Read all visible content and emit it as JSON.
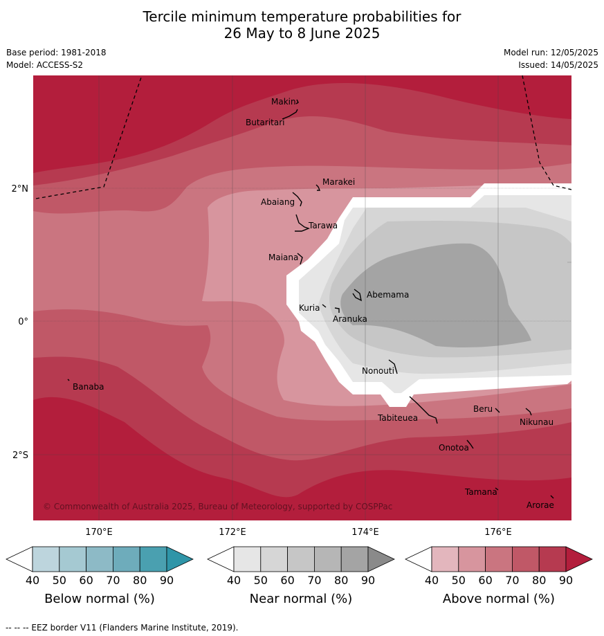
{
  "title": {
    "line1": "Tercile minimum temperature probabilities for",
    "line2": "26 May to 8 June 2025"
  },
  "meta": {
    "base_period": "Base period: 1981-2018",
    "model": "Model: ACCESS-S2",
    "model_run": "Model run: 12/05/2025",
    "issued": "Issued: 14/05/2025"
  },
  "axes": {
    "lon_ticks": [
      "170°E",
      "172°E",
      "174°E",
      "176°E"
    ],
    "lat_ticks": [
      "2°N",
      "0°",
      "2°S"
    ]
  },
  "places": [
    "Makin",
    "Butaritari",
    "Marakei",
    "Abaiang",
    "Tarawa",
    "Maiana",
    "Abemama",
    "Kuria",
    "Aranuka",
    "Nonouti",
    "Banaba",
    "Tabiteuea",
    "Beru",
    "Nikunau",
    "Onotoa",
    "Tamana",
    "Arorae"
  ],
  "copyright": "© Commonwealth of Australia 2025, Bureau of Meteorology, supported by COSPPac",
  "colorbars": [
    {
      "label": "Below normal (%)",
      "colors": [
        "#bdd5dd",
        "#a5c9d2",
        "#8dbac6",
        "#6eacbb",
        "#4aa0b0",
        "#2f95a8"
      ]
    },
    {
      "label": "Near normal (%)",
      "colors": [
        "#e6e6e6",
        "#d6d6d6",
        "#c6c6c6",
        "#b6b6b6",
        "#a4a4a4",
        "#8a8a8a"
      ]
    },
    {
      "label": "Above normal (%)",
      "colors": [
        "#e3b6bd",
        "#d7959e",
        "#ca7580",
        "#c05867",
        "#b63a50",
        "#b31e3c"
      ]
    }
  ],
  "colorbar_ticks": [
    "40",
    "50",
    "60",
    "70",
    "80",
    "90"
  ],
  "footer": "--  --  -- EEZ border V11 (Flanders Marine Institute, 2019)."
}
